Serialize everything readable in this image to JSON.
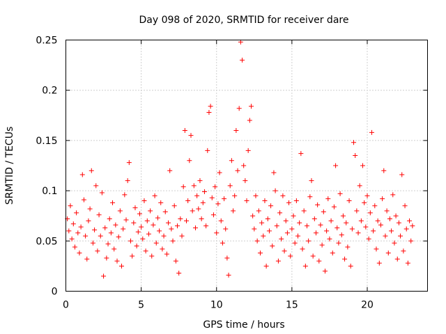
{
  "chart_data": {
    "type": "scatter",
    "title": "Day 098 of 2020, SRMTID for receiver dare",
    "xlabel": "GPS time / hours",
    "ylabel": "SRMTID / TECUs",
    "xlim": [
      0,
      24
    ],
    "ylim": [
      0,
      0.25
    ],
    "xticks": [
      0,
      5,
      10,
      15,
      20
    ],
    "xtick_labels": [
      "0",
      "5",
      "10",
      "15",
      "20"
    ],
    "yticks": [
      0,
      0.05,
      0.1,
      0.15,
      0.2,
      0.25
    ],
    "ytick_labels": [
      "0",
      "0.05",
      "0.1",
      "0.15",
      "0.2",
      "0.25"
    ],
    "grid": true,
    "marker": "+",
    "color": "#ff0000",
    "series": [
      {
        "name": "SRMTID",
        "points": [
          [
            0.1,
            0.072
          ],
          [
            0.2,
            0.06
          ],
          [
            0.3,
            0.085
          ],
          [
            0.4,
            0.052
          ],
          [
            0.5,
            0.067
          ],
          [
            0.6,
            0.044
          ],
          [
            0.7,
            0.078
          ],
          [
            0.8,
            0.058
          ],
          [
            0.9,
            0.038
          ],
          [
            1.0,
            0.064
          ],
          [
            1.1,
            0.116
          ],
          [
            1.2,
            0.091
          ],
          [
            1.3,
            0.055
          ],
          [
            1.4,
            0.032
          ],
          [
            1.5,
            0.07
          ],
          [
            1.6,
            0.082
          ],
          [
            1.7,
            0.12
          ],
          [
            1.8,
            0.048
          ],
          [
            1.9,
            0.061
          ],
          [
            2.0,
            0.105
          ],
          [
            2.1,
            0.04
          ],
          [
            2.2,
            0.076
          ],
          [
            2.3,
            0.055
          ],
          [
            2.4,
            0.098
          ],
          [
            2.5,
            0.015
          ],
          [
            2.6,
            0.063
          ],
          [
            2.7,
            0.033
          ],
          [
            2.8,
            0.047
          ],
          [
            2.9,
            0.072
          ],
          [
            3.0,
            0.058
          ],
          [
            3.1,
            0.088
          ],
          [
            3.2,
            0.042
          ],
          [
            3.3,
            0.066
          ],
          [
            3.4,
            0.03
          ],
          [
            3.5,
            0.054
          ],
          [
            3.6,
            0.08
          ],
          [
            3.7,
            0.025
          ],
          [
            3.8,
            0.062
          ],
          [
            3.9,
            0.096
          ],
          [
            4.0,
            0.071
          ],
          [
            4.1,
            0.11
          ],
          [
            4.2,
            0.128
          ],
          [
            4.3,
            0.05
          ],
          [
            4.4,
            0.035
          ],
          [
            4.5,
            0.068
          ],
          [
            4.6,
            0.083
          ],
          [
            4.7,
            0.045
          ],
          [
            4.8,
            0.059
          ],
          [
            4.9,
            0.077
          ],
          [
            5.0,
            0.064
          ],
          [
            5.1,
            0.052
          ],
          [
            5.2,
            0.09
          ],
          [
            5.3,
            0.04
          ],
          [
            5.4,
            0.07
          ],
          [
            5.5,
            0.057
          ],
          [
            5.6,
            0.08
          ],
          [
            5.7,
            0.035
          ],
          [
            5.8,
            0.066
          ],
          [
            5.9,
            0.095
          ],
          [
            6.0,
            0.048
          ],
          [
            6.1,
            0.073
          ],
          [
            6.2,
            0.06
          ],
          [
            6.3,
            0.088
          ],
          [
            6.4,
            0.042
          ],
          [
            6.5,
            0.055
          ],
          [
            6.6,
            0.079
          ],
          [
            6.7,
            0.037
          ],
          [
            6.8,
            0.068
          ],
          [
            6.9,
            0.12
          ],
          [
            7.0,
            0.062
          ],
          [
            7.1,
            0.05
          ],
          [
            7.2,
            0.085
          ],
          [
            7.3,
            0.03
          ],
          [
            7.4,
            0.065
          ],
          [
            7.5,
            0.018
          ],
          [
            7.6,
            0.072
          ],
          [
            7.7,
            0.055
          ],
          [
            7.8,
            0.104
          ],
          [
            7.9,
            0.16
          ],
          [
            8.0,
            0.07
          ],
          [
            8.1,
            0.09
          ],
          [
            8.2,
            0.13
          ],
          [
            8.3,
            0.155
          ],
          [
            8.4,
            0.08
          ],
          [
            8.5,
            0.105
          ],
          [
            8.6,
            0.063
          ],
          [
            8.7,
            0.095
          ],
          [
            8.8,
            0.082
          ],
          [
            8.9,
            0.11
          ],
          [
            9.0,
            0.072
          ],
          [
            9.1,
            0.088
          ],
          [
            9.2,
            0.099
          ],
          [
            9.3,
            0.065
          ],
          [
            9.4,
            0.14
          ],
          [
            9.5,
            0.178
          ],
          [
            9.6,
            0.184
          ],
          [
            9.7,
            0.093
          ],
          [
            9.8,
            0.076
          ],
          [
            9.9,
            0.104
          ],
          [
            10.0,
            0.058
          ],
          [
            10.1,
            0.087
          ],
          [
            10.2,
            0.118
          ],
          [
            10.3,
            0.07
          ],
          [
            10.4,
            0.048
          ],
          [
            10.5,
            0.092
          ],
          [
            10.6,
            0.062
          ],
          [
            10.7,
            0.033
          ],
          [
            10.8,
            0.016
          ],
          [
            10.9,
            0.105
          ],
          [
            11.0,
            0.13
          ],
          [
            11.1,
            0.08
          ],
          [
            11.2,
            0.095
          ],
          [
            11.3,
            0.16
          ],
          [
            11.4,
            0.12
          ],
          [
            11.5,
            0.182
          ],
          [
            11.6,
            0.248
          ],
          [
            11.7,
            0.23
          ],
          [
            11.8,
            0.125
          ],
          [
            11.9,
            0.11
          ],
          [
            12.0,
            0.09
          ],
          [
            12.1,
            0.14
          ],
          [
            12.2,
            0.17
          ],
          [
            12.3,
            0.184
          ],
          [
            12.4,
            0.075
          ],
          [
            12.5,
            0.062
          ],
          [
            12.6,
            0.095
          ],
          [
            12.7,
            0.05
          ],
          [
            12.8,
            0.08
          ],
          [
            12.9,
            0.038
          ],
          [
            13.0,
            0.068
          ],
          [
            13.1,
            0.055
          ],
          [
            13.2,
            0.09
          ],
          [
            13.3,
            0.025
          ],
          [
            13.4,
            0.072
          ],
          [
            13.5,
            0.06
          ],
          [
            13.6,
            0.085
          ],
          [
            13.7,
            0.045
          ],
          [
            13.8,
            0.118
          ],
          [
            13.9,
            0.1
          ],
          [
            14.0,
            0.065
          ],
          [
            14.1,
            0.03
          ],
          [
            14.2,
            0.078
          ],
          [
            14.3,
            0.052
          ],
          [
            14.4,
            0.095
          ],
          [
            14.5,
            0.04
          ],
          [
            14.6,
            0.07
          ],
          [
            14.7,
            0.058
          ],
          [
            14.8,
            0.088
          ],
          [
            14.9,
            0.035
          ],
          [
            15.0,
            0.062
          ],
          [
            15.1,
            0.075
          ],
          [
            15.2,
            0.048
          ],
          [
            15.3,
            0.09
          ],
          [
            15.4,
            0.055
          ],
          [
            15.5,
            0.068
          ],
          [
            15.6,
            0.137
          ],
          [
            15.7,
            0.042
          ],
          [
            15.8,
            0.08
          ],
          [
            15.9,
            0.025
          ],
          [
            16.0,
            0.065
          ],
          [
            16.1,
            0.05
          ],
          [
            16.2,
            0.094
          ],
          [
            16.3,
            0.11
          ],
          [
            16.4,
            0.035
          ],
          [
            16.5,
            0.072
          ],
          [
            16.6,
            0.058
          ],
          [
            16.7,
            0.086
          ],
          [
            16.8,
            0.03
          ],
          [
            16.9,
            0.066
          ],
          [
            17.0,
            0.046
          ],
          [
            17.1,
            0.079
          ],
          [
            17.2,
            0.02
          ],
          [
            17.3,
            0.06
          ],
          [
            17.4,
            0.092
          ],
          [
            17.5,
            0.052
          ],
          [
            17.6,
            0.07
          ],
          [
            17.7,
            0.038
          ],
          [
            17.8,
            0.084
          ],
          [
            17.9,
            0.125
          ],
          [
            18.0,
            0.063
          ],
          [
            18.1,
            0.048
          ],
          [
            18.2,
            0.097
          ],
          [
            18.3,
            0.056
          ],
          [
            18.4,
            0.075
          ],
          [
            18.5,
            0.032
          ],
          [
            18.6,
            0.068
          ],
          [
            18.7,
            0.044
          ],
          [
            18.8,
            0.09
          ],
          [
            18.9,
            0.025
          ],
          [
            19.0,
            0.062
          ],
          [
            19.1,
            0.148
          ],
          [
            19.2,
            0.135
          ],
          [
            19.3,
            0.08
          ],
          [
            19.4,
            0.058
          ],
          [
            19.5,
            0.105
          ],
          [
            19.6,
            0.07
          ],
          [
            19.7,
            0.125
          ],
          [
            19.8,
            0.088
          ],
          [
            19.9,
            0.064
          ],
          [
            20.0,
            0.095
          ],
          [
            20.1,
            0.052
          ],
          [
            20.2,
            0.078
          ],
          [
            20.3,
            0.158
          ],
          [
            20.4,
            0.06
          ],
          [
            20.5,
            0.085
          ],
          [
            20.6,
            0.042
          ],
          [
            20.7,
            0.07
          ],
          [
            20.8,
            0.028
          ],
          [
            20.9,
            0.066
          ],
          [
            21.0,
            0.092
          ],
          [
            21.1,
            0.12
          ],
          [
            21.2,
            0.055
          ],
          [
            21.3,
            0.08
          ],
          [
            21.4,
            0.038
          ],
          [
            21.5,
            0.072
          ],
          [
            21.6,
            0.06
          ],
          [
            21.7,
            0.096
          ],
          [
            21.8,
            0.048
          ],
          [
            21.9,
            0.075
          ],
          [
            22.0,
            0.032
          ],
          [
            22.1,
            0.068
          ],
          [
            22.2,
            0.055
          ],
          [
            22.3,
            0.116
          ],
          [
            22.4,
            0.04
          ],
          [
            22.5,
            0.085
          ],
          [
            22.6,
            0.062
          ],
          [
            22.7,
            0.028
          ],
          [
            22.8,
            0.07
          ],
          [
            22.9,
            0.05
          ],
          [
            23.0,
            0.065
          ]
        ]
      }
    ]
  }
}
